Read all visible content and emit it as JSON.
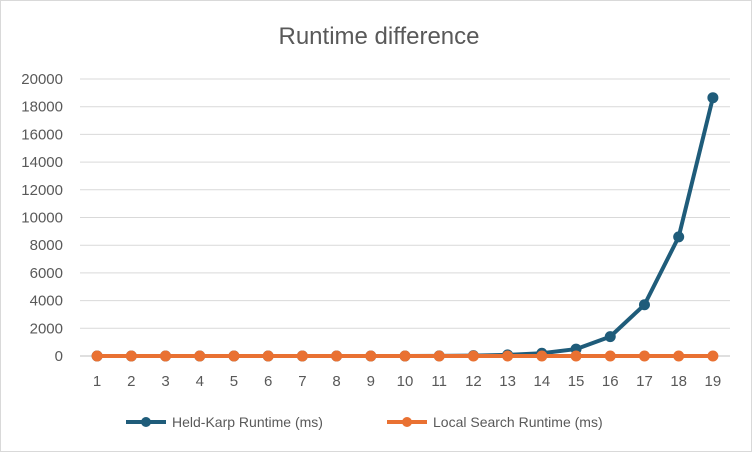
{
  "chart_data": {
    "type": "line",
    "title": "Runtime difference",
    "xlabel": "",
    "ylabel": "",
    "categories": [
      "1",
      "2",
      "3",
      "4",
      "5",
      "6",
      "7",
      "8",
      "9",
      "10",
      "11",
      "12",
      "13",
      "14",
      "15",
      "16",
      "17",
      "18",
      "19"
    ],
    "ylim": [
      0,
      20000
    ],
    "yticks": [
      0,
      2000,
      4000,
      6000,
      8000,
      10000,
      12000,
      14000,
      16000,
      18000,
      20000
    ],
    "grid": "horizontal",
    "legend_position": "bottom",
    "series": [
      {
        "name": "Held-Karp Runtime (ms)",
        "color": "#1f5c7a",
        "values": [
          0,
          0,
          0,
          0,
          0,
          0,
          0,
          0,
          1,
          3,
          8,
          30,
          80,
          200,
          500,
          1400,
          3700,
          8600,
          18650
        ]
      },
      {
        "name": "Local Search Runtime (ms)",
        "color": "#e97132",
        "values": [
          0,
          0,
          0,
          0,
          0,
          0,
          0,
          0,
          0,
          0,
          0,
          0,
          0,
          0,
          0,
          0,
          0,
          0,
          0
        ]
      }
    ]
  }
}
